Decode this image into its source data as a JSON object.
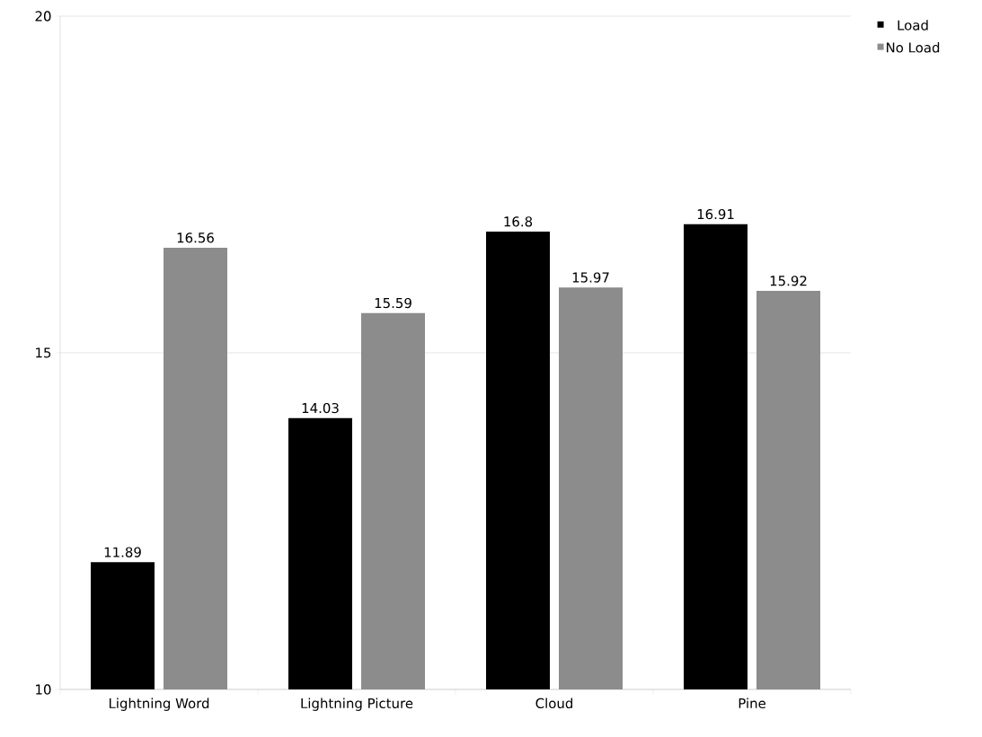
{
  "chart_data": {
    "type": "bar",
    "categories": [
      "Lightning Word",
      "Lightning Picture",
      "Cloud",
      "Pine"
    ],
    "series": [
      {
        "name": "Load",
        "color": "#000000",
        "values": [
          11.89,
          14.03,
          16.8,
          16.91
        ]
      },
      {
        "name": "No Load",
        "color": "#8c8c8c",
        "values": [
          16.56,
          15.59,
          15.97,
          15.92
        ]
      }
    ],
    "ylim": [
      10,
      20
    ],
    "yticks": [
      10,
      15,
      20
    ],
    "grid": "y",
    "legend": "top right",
    "data_labels": true
  }
}
